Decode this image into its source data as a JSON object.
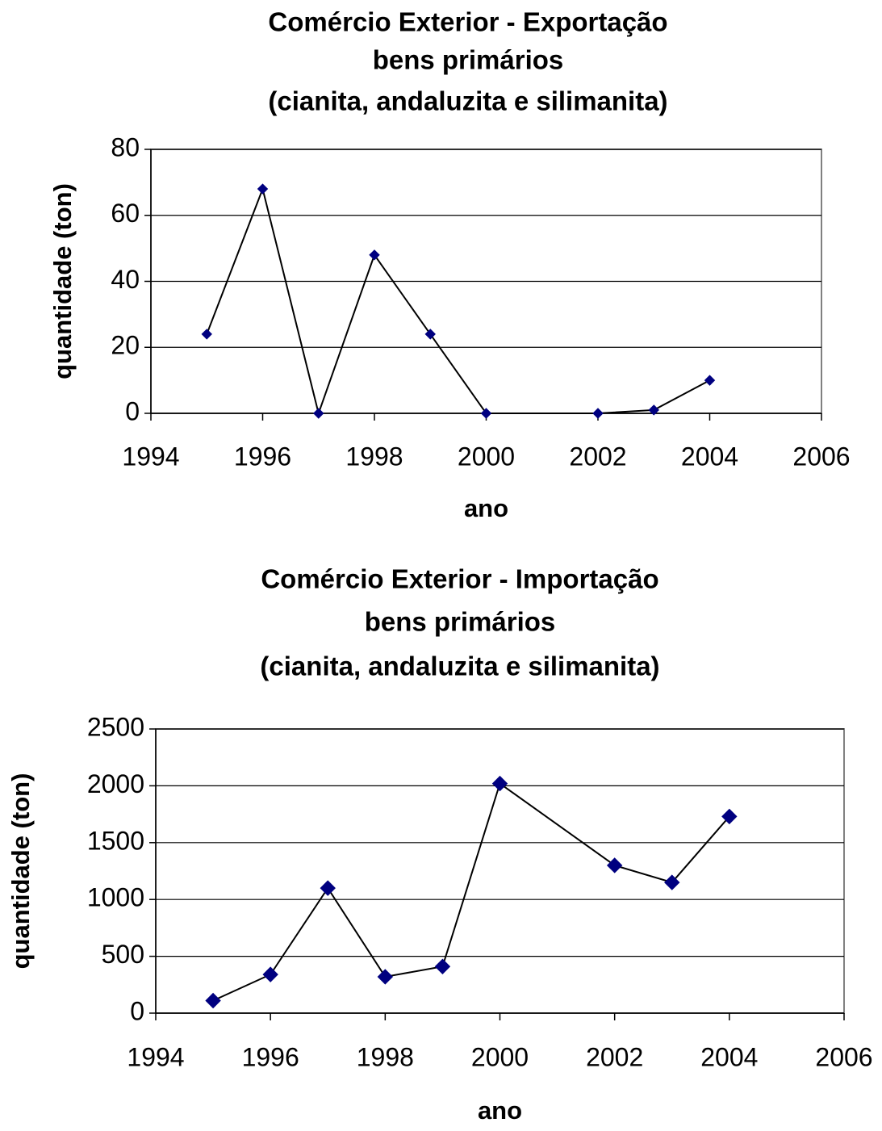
{
  "chart_data": [
    {
      "type": "line",
      "title": [
        "Comércio Exterior - Exportação",
        "bens primários",
        "(cianita, andaluzita e silimanita)"
      ],
      "x_label": "ano",
      "y_label": "quantidade (ton)",
      "x": [
        1995,
        1996,
        1997,
        1998,
        1999,
        2000,
        2002,
        2003,
        2004
      ],
      "values": [
        24,
        68,
        0,
        48,
        24,
        0,
        0,
        1,
        10
      ],
      "marker_color": "#000080",
      "line_color": "#000000",
      "xlim": [
        1994,
        2006
      ],
      "xticks": [
        1994,
        1996,
        1998,
        2000,
        2002,
        2004,
        2006
      ],
      "ylim": [
        0,
        80
      ],
      "yticks": [
        0,
        20,
        40,
        60,
        80
      ],
      "grid": true
    },
    {
      "type": "line",
      "title": [
        "Comércio Exterior - Importação",
        "bens primários",
        "(cianita, andaluzita e silimanita)"
      ],
      "x_label": "ano",
      "y_label": "quantidade (ton)",
      "x": [
        1995,
        1996,
        1997,
        1998,
        1999,
        2000,
        2002,
        2003,
        2004
      ],
      "values": [
        110,
        340,
        1100,
        320,
        410,
        2020,
        1300,
        1150,
        1730
      ],
      "marker_color": "#000080",
      "line_color": "#000000",
      "xlim": [
        1994,
        2006
      ],
      "xticks": [
        1994,
        1996,
        1998,
        2000,
        2002,
        2004,
        2006
      ],
      "ylim": [
        0,
        2500
      ],
      "yticks": [
        0,
        500,
        1000,
        1500,
        2000,
        2500
      ],
      "grid": true
    }
  ]
}
